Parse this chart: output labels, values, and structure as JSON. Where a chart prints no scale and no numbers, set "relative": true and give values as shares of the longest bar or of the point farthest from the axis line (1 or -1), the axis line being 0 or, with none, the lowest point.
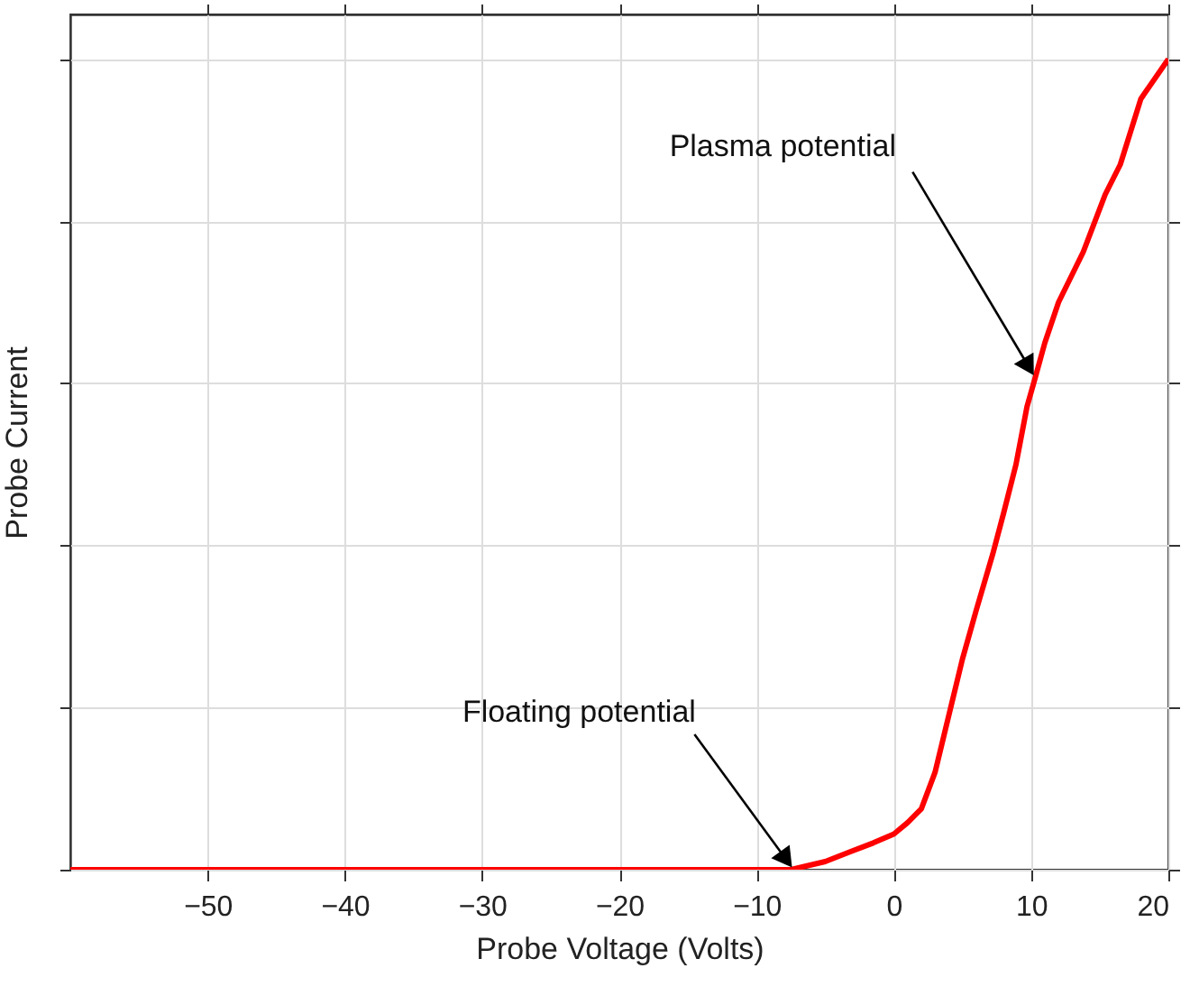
{
  "chart_data": {
    "type": "line",
    "xlabel": "Probe Voltage (Volts)",
    "ylabel": "Probe Current",
    "relative": true,
    "x": [
      -60,
      -40,
      -30,
      -20,
      -15,
      -10,
      -7.5,
      -5,
      -3.2,
      -1.5,
      0,
      1,
      2,
      3,
      4,
      5,
      6,
      7.2,
      8,
      8.9,
      9.7,
      10.3,
      11,
      12,
      13.8,
      15.4,
      16.5,
      18,
      20
    ],
    "series": [
      {
        "color": "#ff0000",
        "values": [
          0,
          0,
          0,
          0,
          0,
          0,
          0,
          0.01,
          0.022,
          0.033,
          0.044,
          0.058,
          0.075,
          0.12,
          0.19,
          0.26,
          0.32,
          0.389,
          0.44,
          0.5,
          0.571,
          0.607,
          0.65,
          0.7,
          0.762,
          0.833,
          0.87,
          0.951,
          1
        ]
      }
    ],
    "xlim": [
      -60,
      20
    ],
    "xticks": [
      -50,
      -40,
      -30,
      -20,
      -10,
      0,
      10,
      20
    ],
    "grid": true,
    "marker": "none",
    "line_style": "solid",
    "annotations": [
      {
        "text": "Plasma potential",
        "x": 10.3,
        "y": 0.607
      },
      {
        "text": "Floating potential",
        "x": -7.3,
        "y": 0
      }
    ]
  }
}
